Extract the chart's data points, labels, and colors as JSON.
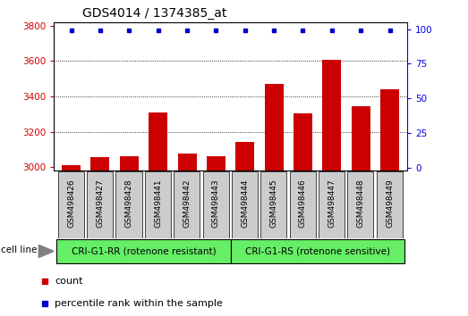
{
  "title": "GDS4014 / 1374385_at",
  "categories": [
    "GSM498426",
    "GSM498427",
    "GSM498428",
    "GSM498441",
    "GSM498442",
    "GSM498443",
    "GSM498444",
    "GSM498445",
    "GSM498446",
    "GSM498447",
    "GSM498448",
    "GSM498449"
  ],
  "counts": [
    3010,
    3055,
    3060,
    3310,
    3075,
    3060,
    3140,
    3470,
    3305,
    3605,
    3345,
    3440
  ],
  "percentile_ranks": [
    99,
    99,
    99,
    99,
    99,
    99,
    99,
    99,
    99,
    99,
    99,
    99
  ],
  "bar_color": "#cc0000",
  "dot_color": "#0000cc",
  "ylim_left": [
    2980,
    3820
  ],
  "ylim_right": [
    -2.1,
    105
  ],
  "yticks_left": [
    3000,
    3200,
    3400,
    3600,
    3800
  ],
  "yticks_right": [
    0,
    25,
    50,
    75,
    100
  ],
  "group1_label": "CRI-G1-RR (rotenone resistant)",
  "group2_label": "CRI-G1-RS (rotenone sensitive)",
  "group1_count": 6,
  "group2_count": 6,
  "cell_line_label": "cell line",
  "legend_count_label": "count",
  "legend_percentile_label": "percentile rank within the sample",
  "group_bg_color": "#66ee66",
  "tick_label_bg": "#cccccc",
  "right_axis_color": "#0000ee",
  "left_axis_color": "#cc0000",
  "grid_color": "#000000",
  "title_fontsize": 10,
  "tick_fontsize": 7.5,
  "label_fontsize": 8,
  "bar_bottom": 2980
}
